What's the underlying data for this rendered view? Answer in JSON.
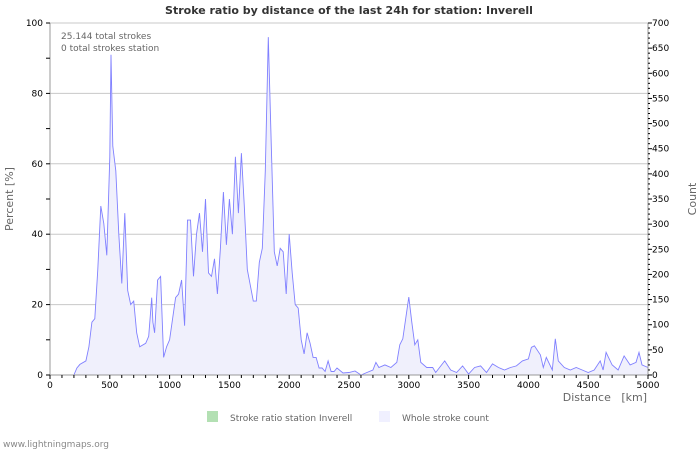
{
  "chart_data": {
    "type": "area",
    "title": "Stroke ratio by distance of the last 24h for station: Inverell",
    "xlabel": "Distance   [km]",
    "ylabel": "Percent   [%]",
    "y2label": "Count",
    "xlim": [
      0,
      5000
    ],
    "ylim": [
      0,
      100
    ],
    "y2lim": [
      0,
      700
    ],
    "xticks": [
      0,
      500,
      1000,
      1500,
      2000,
      2500,
      3000,
      3500,
      4000,
      4500,
      5000
    ],
    "yticks": [
      0,
      20,
      40,
      60,
      80,
      100
    ],
    "y2ticks": [
      0,
      50,
      100,
      150,
      200,
      250,
      300,
      350,
      400,
      450,
      500,
      550,
      600,
      650,
      700
    ],
    "grid": true,
    "annotations": [
      "25.144 total strokes",
      "0 total strokes station"
    ],
    "legend": {
      "placement": "bottom",
      "items": [
        {
          "label": "Stroke ratio station Inverell",
          "color": "#b3e0b3"
        },
        {
          "label": "Whole stroke count",
          "color": "#f0f0ff"
        }
      ]
    },
    "series": [
      {
        "name": "Stroke ratio station Inverell",
        "axis": "left",
        "color": "#66cc66",
        "points": []
      },
      {
        "name": "Whole stroke count",
        "axis": "right",
        "color": "#8080ff",
        "fill": "#f0f0fc",
        "points": [
          [
            200,
            0
          ],
          [
            225,
            14
          ],
          [
            250,
            21
          ],
          [
            300,
            28
          ],
          [
            325,
            56
          ],
          [
            350,
            105
          ],
          [
            375,
            112
          ],
          [
            400,
            210
          ],
          [
            425,
            336
          ],
          [
            450,
            301
          ],
          [
            475,
            238
          ],
          [
            500,
            434
          ],
          [
            510,
            637
          ],
          [
            525,
            455
          ],
          [
            550,
            406
          ],
          [
            575,
            280
          ],
          [
            600,
            182
          ],
          [
            625,
            322
          ],
          [
            650,
            168
          ],
          [
            675,
            140
          ],
          [
            700,
            147
          ],
          [
            725,
            84
          ],
          [
            750,
            56
          ],
          [
            800,
            63
          ],
          [
            825,
            77
          ],
          [
            850,
            154
          ],
          [
            860,
            105
          ],
          [
            875,
            84
          ],
          [
            900,
            189
          ],
          [
            925,
            196
          ],
          [
            950,
            35
          ],
          [
            975,
            56
          ],
          [
            1000,
            70
          ],
          [
            1050,
            154
          ],
          [
            1075,
            161
          ],
          [
            1100,
            189
          ],
          [
            1125,
            98
          ],
          [
            1150,
            308
          ],
          [
            1175,
            308
          ],
          [
            1200,
            196
          ],
          [
            1225,
            280
          ],
          [
            1250,
            322
          ],
          [
            1275,
            245
          ],
          [
            1300,
            350
          ],
          [
            1325,
            203
          ],
          [
            1350,
            196
          ],
          [
            1375,
            231
          ],
          [
            1400,
            161
          ],
          [
            1425,
            252
          ],
          [
            1450,
            364
          ],
          [
            1475,
            259
          ],
          [
            1500,
            350
          ],
          [
            1525,
            280
          ],
          [
            1550,
            434
          ],
          [
            1575,
            322
          ],
          [
            1600,
            441
          ],
          [
            1625,
            336
          ],
          [
            1650,
            210
          ],
          [
            1700,
            147
          ],
          [
            1725,
            147
          ],
          [
            1750,
            224
          ],
          [
            1775,
            252
          ],
          [
            1800,
            406
          ],
          [
            1825,
            672
          ],
          [
            1850,
            455
          ],
          [
            1875,
            245
          ],
          [
            1900,
            217
          ],
          [
            1925,
            252
          ],
          [
            1950,
            245
          ],
          [
            1975,
            161
          ],
          [
            2000,
            280
          ],
          [
            2025,
            203
          ],
          [
            2050,
            140
          ],
          [
            2075,
            133
          ],
          [
            2100,
            70
          ],
          [
            2125,
            42
          ],
          [
            2150,
            84
          ],
          [
            2175,
            63
          ],
          [
            2200,
            35
          ],
          [
            2225,
            35
          ],
          [
            2250,
            14
          ],
          [
            2275,
            14
          ],
          [
            2300,
            7
          ],
          [
            2325,
            28
          ],
          [
            2350,
            7
          ],
          [
            2375,
            7
          ],
          [
            2400,
            14
          ],
          [
            2450,
            4
          ],
          [
            2500,
            5
          ],
          [
            2550,
            8
          ],
          [
            2600,
            0
          ],
          [
            2650,
            5
          ],
          [
            2700,
            10
          ],
          [
            2725,
            25
          ],
          [
            2750,
            15
          ],
          [
            2800,
            20
          ],
          [
            2850,
            15
          ],
          [
            2900,
            25
          ],
          [
            2925,
            60
          ],
          [
            2950,
            72
          ],
          [
            3000,
            155
          ],
          [
            3025,
            105
          ],
          [
            3050,
            60
          ],
          [
            3075,
            70
          ],
          [
            3100,
            25
          ],
          [
            3150,
            15
          ],
          [
            3200,
            15
          ],
          [
            3225,
            5
          ],
          [
            3300,
            28
          ],
          [
            3350,
            10
          ],
          [
            3400,
            5
          ],
          [
            3450,
            18
          ],
          [
            3500,
            2
          ],
          [
            3550,
            15
          ],
          [
            3600,
            18
          ],
          [
            3650,
            5
          ],
          [
            3700,
            22
          ],
          [
            3750,
            15
          ],
          [
            3800,
            10
          ],
          [
            3850,
            15
          ],
          [
            3900,
            18
          ],
          [
            3950,
            28
          ],
          [
            4000,
            32
          ],
          [
            4025,
            55
          ],
          [
            4050,
            58
          ],
          [
            4100,
            40
          ],
          [
            4125,
            15
          ],
          [
            4150,
            35
          ],
          [
            4200,
            10
          ],
          [
            4225,
            72
          ],
          [
            4250,
            28
          ],
          [
            4300,
            15
          ],
          [
            4350,
            10
          ],
          [
            4400,
            15
          ],
          [
            4450,
            10
          ],
          [
            4500,
            5
          ],
          [
            4550,
            10
          ],
          [
            4600,
            28
          ],
          [
            4625,
            10
          ],
          [
            4650,
            45
          ],
          [
            4700,
            20
          ],
          [
            4750,
            10
          ],
          [
            4800,
            38
          ],
          [
            4850,
            20
          ],
          [
            4900,
            25
          ],
          [
            4925,
            45
          ],
          [
            4950,
            20
          ],
          [
            5000,
            15
          ]
        ]
      }
    ]
  },
  "footer": "www.lightningmaps.org"
}
